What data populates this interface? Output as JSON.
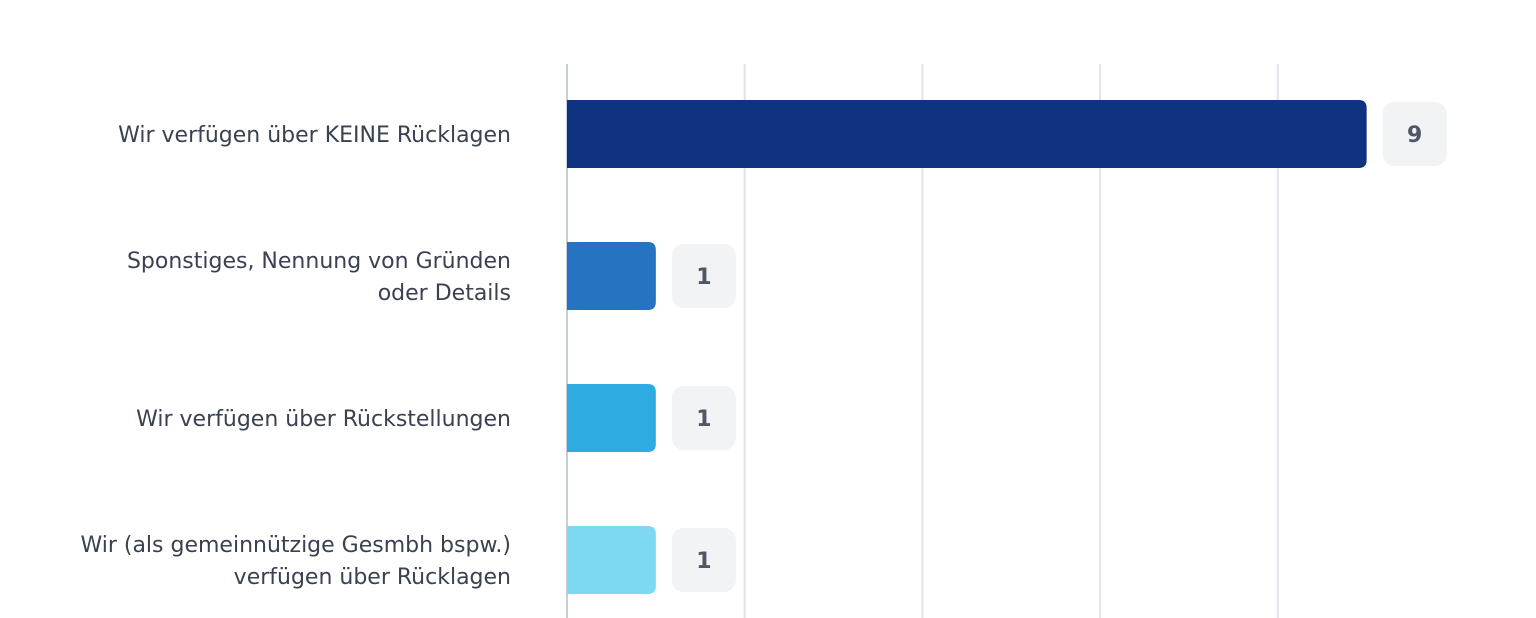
{
  "chart_data": {
    "type": "bar",
    "orientation": "horizontal",
    "categories": [
      [
        "Wir verfügen über KEINE Rücklagen"
      ],
      [
        "Sponstiges, Nennung von Gründen",
        "oder Details"
      ],
      [
        "Wir verfügen über Rückstellungen"
      ],
      [
        "Wir (als gemeinnützige Gesmbh bspw.)",
        "verfügen über Rücklagen"
      ]
    ],
    "values": [
      9,
      1,
      1,
      1
    ],
    "bar_colors": [
      "#0f3380",
      "#2573c1",
      "#2eace2",
      "#7dd8f1"
    ],
    "xlim": [
      0,
      10
    ],
    "grid": true,
    "value_labels": [
      "9",
      "1",
      "1",
      "1"
    ]
  }
}
